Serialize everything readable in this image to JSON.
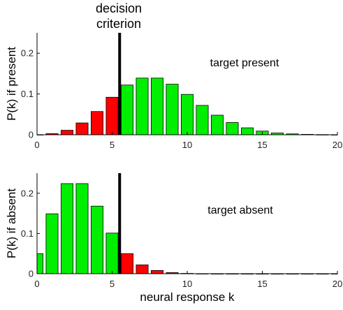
{
  "criterion_label": [
    "decision",
    "criterion"
  ],
  "chart_data": [
    {
      "type": "bar",
      "title": "",
      "annotation": "target present",
      "xlabel": "",
      "ylabel": "P(k) if present",
      "xlim": [
        0,
        20
      ],
      "ylim": [
        0,
        0.25
      ],
      "xticks": [
        0,
        5,
        10,
        15,
        20
      ],
      "yticks": [
        0,
        0.1,
        0.2
      ],
      "criterion_x": 5.5,
      "colors": {
        "below_criterion": "#ff0000",
        "above_criterion": "#00ee00",
        "criterion_line": "#000000"
      },
      "x": [
        0,
        1,
        2,
        3,
        4,
        5,
        6,
        7,
        8,
        9,
        10,
        11,
        12,
        13,
        14,
        15,
        16,
        17,
        18,
        19,
        20
      ],
      "values": [
        0.0003,
        0.0027,
        0.011,
        0.029,
        0.057,
        0.092,
        0.122,
        0.139,
        0.139,
        0.124,
        0.099,
        0.072,
        0.048,
        0.03,
        0.017,
        0.009,
        0.0045,
        0.0021,
        0.001,
        0.0004,
        0.0002
      ]
    },
    {
      "type": "bar",
      "title": "",
      "annotation": "target absent",
      "xlabel": "neural response k",
      "ylabel": "P(k) if absent",
      "xlim": [
        0,
        20
      ],
      "ylim": [
        0,
        0.25
      ],
      "xticks": [
        0,
        5,
        10,
        15,
        20
      ],
      "yticks": [
        0,
        0.1,
        0.2
      ],
      "criterion_x": 5.5,
      "colors": {
        "below_criterion": "#00ee00",
        "above_criterion": "#ff0000",
        "criterion_line": "#000000"
      },
      "x": [
        0,
        1,
        2,
        3,
        4,
        5,
        6,
        7,
        8,
        9,
        10,
        11,
        12,
        13,
        14,
        15,
        16,
        17,
        18,
        19,
        20
      ],
      "values": [
        0.05,
        0.149,
        0.224,
        0.224,
        0.168,
        0.101,
        0.05,
        0.022,
        0.008,
        0.0027,
        0.0008,
        0.0002,
        0,
        0,
        0,
        0,
        0,
        0,
        0,
        0,
        0
      ]
    }
  ]
}
